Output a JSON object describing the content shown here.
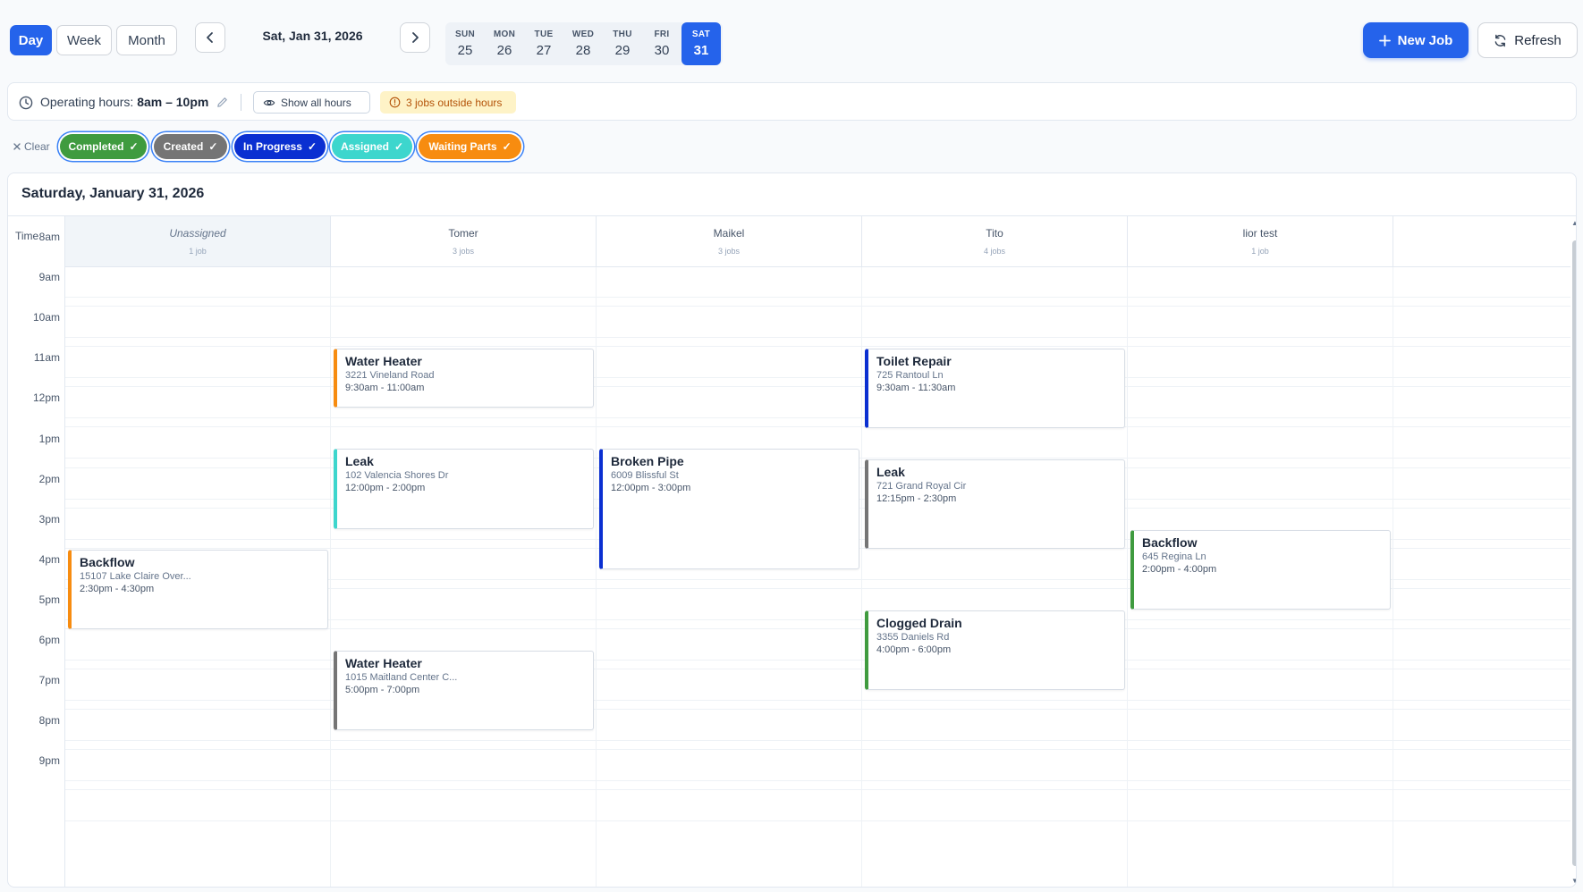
{
  "toolbar": {
    "views": [
      "Day",
      "Week",
      "Month"
    ],
    "active_view": "Day",
    "date_label": "Sat, Jan 31, 2026",
    "days": [
      {
        "dow": "SUN",
        "num": "25"
      },
      {
        "dow": "MON",
        "num": "26"
      },
      {
        "dow": "TUE",
        "num": "27"
      },
      {
        "dow": "WED",
        "num": "28"
      },
      {
        "dow": "THU",
        "num": "29"
      },
      {
        "dow": "FRI",
        "num": "30"
      },
      {
        "dow": "SAT",
        "num": "31"
      }
    ],
    "active_day": "31",
    "new_job_label": "New Job",
    "refresh_label": "Refresh"
  },
  "hours_bar": {
    "label": "Operating hours:",
    "value": "8am – 10pm",
    "show_all_label": "Show all hours",
    "outside_label": "3 jobs outside hours"
  },
  "filters": {
    "clear_label": "Clear",
    "chips": [
      {
        "label": "Completed",
        "color": "#3f9b3f"
      },
      {
        "label": "Created",
        "color": "#757575"
      },
      {
        "label": "In Progress",
        "color": "#0a2fd1"
      },
      {
        "label": "Assigned",
        "color": "#3dd6cd"
      },
      {
        "label": "Waiting Parts",
        "color": "#f78c10"
      }
    ]
  },
  "calendar": {
    "title": "Saturday, January 31, 2026",
    "time_header": "Time",
    "hours": [
      "8am",
      "9am",
      "10am",
      "11am",
      "12pm",
      "1pm",
      "2pm",
      "3pm",
      "4pm",
      "5pm",
      "6pm",
      "7pm",
      "8pm",
      "9pm"
    ],
    "columns": [
      {
        "name": "Unassigned",
        "count": "1 job"
      },
      {
        "name": "Tomer",
        "count": "3 jobs"
      },
      {
        "name": "Maikel",
        "count": "3 jobs"
      },
      {
        "name": "Tito",
        "count": "4 jobs"
      },
      {
        "name": "lior test",
        "count": "1 job"
      }
    ],
    "events": [
      {
        "col": 0,
        "start": 14.5,
        "end": 16.5,
        "title": "Backflow",
        "address": "15107 Lake Claire Over...",
        "time": "2:30pm - 4:30pm",
        "status_color": "#f78c10"
      },
      {
        "col": 1,
        "start": 9.5,
        "end": 11.0,
        "title": "Water Heater",
        "address": "3221 Vineland Road",
        "time": "9:30am - 11:00am",
        "status_color": "#f78c10"
      },
      {
        "col": 1,
        "start": 12.0,
        "end": 14.0,
        "title": "Leak",
        "address": "102 Valencia Shores Dr",
        "time": "12:00pm - 2:00pm",
        "status_color": "#3dd6cd"
      },
      {
        "col": 1,
        "start": 17.0,
        "end": 19.0,
        "title": "Water Heater",
        "address": "1015 Maitland Center C...",
        "time": "5:00pm - 7:00pm",
        "status_color": "#757575"
      },
      {
        "col": 2,
        "start": 12.0,
        "end": 15.0,
        "title": "Broken Pipe",
        "address": "6009 Blissful St",
        "time": "12:00pm - 3:00pm",
        "status_color": "#0a2fd1"
      },
      {
        "col": 3,
        "start": 9.5,
        "end": 11.5,
        "title": "Toilet Repair",
        "address": "725 Rantoul Ln",
        "time": "9:30am - 11:30am",
        "status_color": "#0a2fd1"
      },
      {
        "col": 3,
        "start": 12.25,
        "end": 14.5,
        "title": "Leak",
        "address": "721 Grand Royal Cir",
        "time": "12:15pm - 2:30pm",
        "status_color": "#757575"
      },
      {
        "col": 3,
        "start": 16.0,
        "end": 18.0,
        "title": "Clogged Drain",
        "address": "3355 Daniels Rd",
        "time": "4:00pm - 6:00pm",
        "status_color": "#3f9b3f"
      },
      {
        "col": 4,
        "start": 14.0,
        "end": 16.0,
        "title": "Backflow",
        "address": "645 Regina Ln",
        "time": "2:00pm - 4:00pm",
        "status_color": "#3f9b3f"
      }
    ]
  }
}
